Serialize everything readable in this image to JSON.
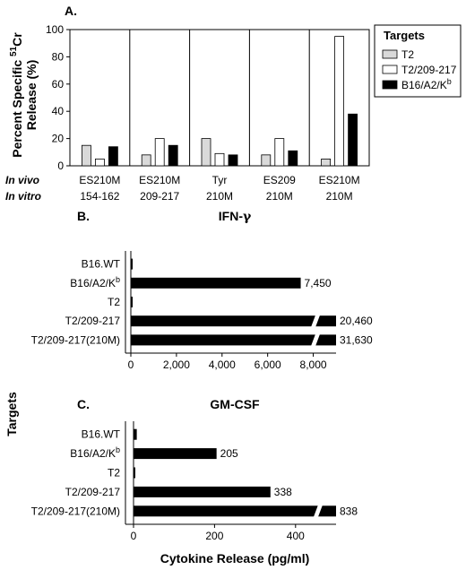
{
  "chart_data": [
    {
      "panel": "A.",
      "type": "bar",
      "ylabel": "Percent Specific 51Cr Release (%)",
      "ylabel_parts": {
        "before": "Percent Specific ",
        "sup": "51",
        "after": "Cr",
        "line2": "Release (%)"
      },
      "ylim": [
        0,
        100
      ],
      "yticks": [
        "0",
        "20",
        "40",
        "60",
        "80",
        "100"
      ],
      "legend_title": "Targets",
      "legend_placement": "right",
      "series": [
        {
          "name": "T2",
          "legend_base": "T2",
          "legend_sup": "",
          "color": "#d9d9d9",
          "values": [
            15,
            8,
            20,
            8,
            5
          ]
        },
        {
          "name": "T2/209-217",
          "legend_base": "T2/209-217",
          "legend_sup": "",
          "color": "#ffffff",
          "values": [
            5,
            20,
            9,
            20,
            95
          ]
        },
        {
          "name": "B16/A2/Kb",
          "legend_base": "B16/A2/K",
          "legend_sup": "b",
          "color": "#000000",
          "values": [
            14,
            15,
            8,
            11,
            38
          ]
        }
      ],
      "row_labels": [
        "In vivo",
        "In vitro"
      ],
      "groups": [
        {
          "in_vivo": "ES210M",
          "in_vitro": "154-162"
        },
        {
          "in_vivo": "ES210M",
          "in_vitro": "209-217"
        },
        {
          "in_vivo": "Tyr",
          "in_vitro": "210M"
        },
        {
          "in_vivo": "ES209",
          "in_vitro": "210M"
        },
        {
          "in_vivo": "ES210M",
          "in_vitro": "210M"
        }
      ]
    },
    {
      "panel": "B.",
      "type": "bar",
      "orientation": "horizontal",
      "title": "IFN-γ",
      "title_parts": {
        "base": "IFN-",
        "symbol": "γ"
      },
      "xlim": [
        0,
        9000
      ],
      "xticks": [
        0,
        2000,
        4000,
        6000,
        8000
      ],
      "xtick_labels": [
        "0",
        "2,000",
        "4,000",
        "6,000",
        "8,000"
      ],
      "axis_break_above": 8000,
      "categories": [
        {
          "base": "B16.WT",
          "sup": ""
        },
        {
          "base": "B16/A2/K",
          "sup": "b"
        },
        {
          "base": "T2",
          "sup": ""
        },
        {
          "base": "T2/209-217",
          "sup": ""
        },
        {
          "base": "T2/209-217(210M)",
          "sup": ""
        }
      ],
      "values": [
        60,
        7450,
        20,
        20460,
        31630
      ],
      "value_labels": [
        "",
        "7,450",
        "",
        "20,460",
        "31,630"
      ]
    },
    {
      "panel": "C.",
      "type": "bar",
      "orientation": "horizontal",
      "title": "GM-CSF",
      "xlim": [
        0,
        500
      ],
      "xticks": [
        0,
        200,
        400
      ],
      "xtick_labels": [
        "0",
        "200",
        "400"
      ],
      "axis_break_above": 450,
      "categories": [
        {
          "base": "B16.WT",
          "sup": ""
        },
        {
          "base": "B16/A2/K",
          "sup": "b"
        },
        {
          "base": "T2",
          "sup": ""
        },
        {
          "base": "T2/209-217",
          "sup": ""
        },
        {
          "base": "T2/209-217(210M)",
          "sup": ""
        }
      ],
      "values": [
        8,
        205,
        4,
        338,
        838
      ],
      "value_labels": [
        "",
        "205",
        "",
        "338",
        "838"
      ]
    }
  ],
  "shared": {
    "ylabel": "Targets",
    "xlabel": "Cytokine Release (pg/ml)"
  }
}
